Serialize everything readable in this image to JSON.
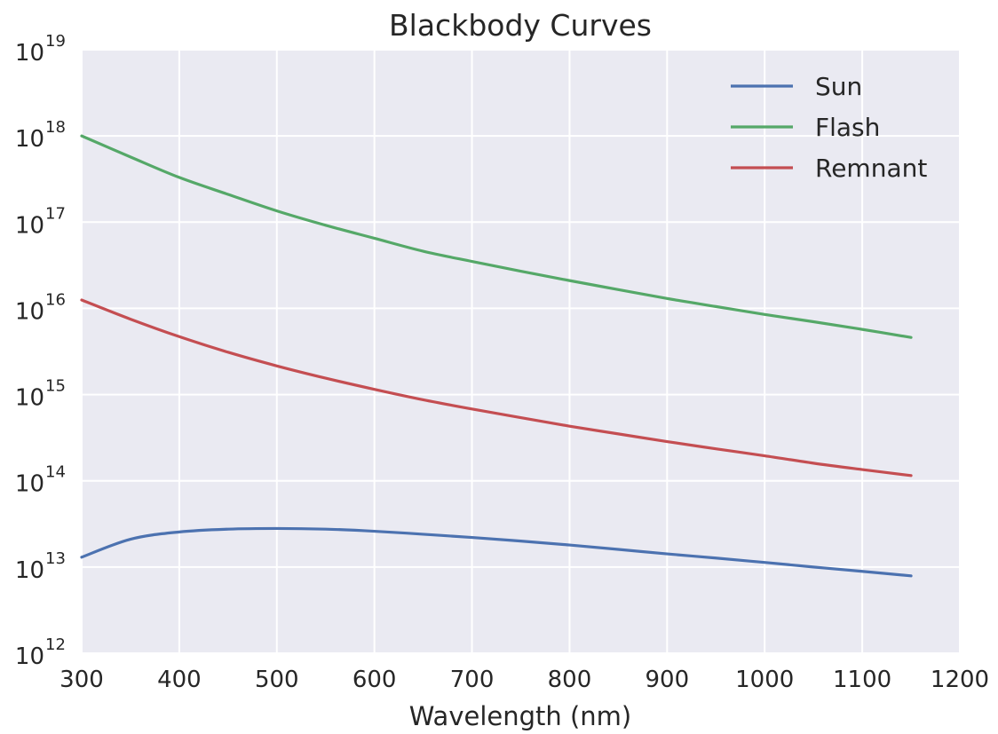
{
  "chart_data": {
    "type": "line",
    "title": "Blackbody Curves",
    "xlabel": "Wavelength (nm)",
    "ylabel": "",
    "xlim": [
      300,
      1200
    ],
    "ylim": [
      1000000000000.0,
      1e+19
    ],
    "yscale": "log",
    "grid": true,
    "legend_position": "top-right",
    "x_ticks": [
      "300",
      "400",
      "500",
      "600",
      "700",
      "800",
      "900",
      "1000",
      "1100",
      "1200"
    ],
    "y_tick_exponents": [
      "12",
      "13",
      "14",
      "15",
      "16",
      "17",
      "18",
      "19"
    ],
    "y_tick_base": "10",
    "x": [
      300,
      350,
      400,
      450,
      500,
      550,
      600,
      650,
      700,
      750,
      800,
      850,
      900,
      950,
      1000,
      1050,
      1100,
      1150
    ],
    "series": [
      {
        "name": "Sun",
        "color": "#4c72b0",
        "values": [
          13000000000000.0,
          21000000000000.0,
          25500000000000.0,
          27500000000000.0,
          28000000000000.0,
          27500000000000.0,
          26000000000000.0,
          24000000000000.0,
          22000000000000.0,
          20000000000000.0,
          18000000000000.0,
          16000000000000.0,
          14200000000000.0,
          12700000000000.0,
          11300000000000.0,
          10000000000000.0,
          8900000000000.0,
          7900000000000.0
        ]
      },
      {
        "name": "Flash",
        "color": "#55a868",
        "values": [
          1e+18,
          5.7e+17,
          3.3e+17,
          2.1e+17,
          1.35e+17,
          9.2e+16,
          6.5e+16,
          4.6e+16,
          3.5e+16,
          2.7e+16,
          2.1e+16,
          1.65e+16,
          1.3e+16,
          1.05e+16,
          8500000000000000.0,
          7000000000000000.0,
          5700000000000000.0,
          4600000000000000.0
        ]
      },
      {
        "name": "Remnant",
        "color": "#c44e52",
        "values": [
          1.25e+16,
          7500000000000000.0,
          4700000000000000.0,
          3100000000000000.0,
          2150000000000000.0,
          1550000000000000.0,
          1150000000000000.0,
          870000000000000.0,
          680000000000000.0,
          540000000000000.0,
          430000000000000.0,
          350000000000000.0,
          285000000000000.0,
          235000000000000.0,
          195000000000000.0,
          160000000000000.0,
          135000000000000.0,
          115000000000000.0
        ]
      }
    ]
  }
}
